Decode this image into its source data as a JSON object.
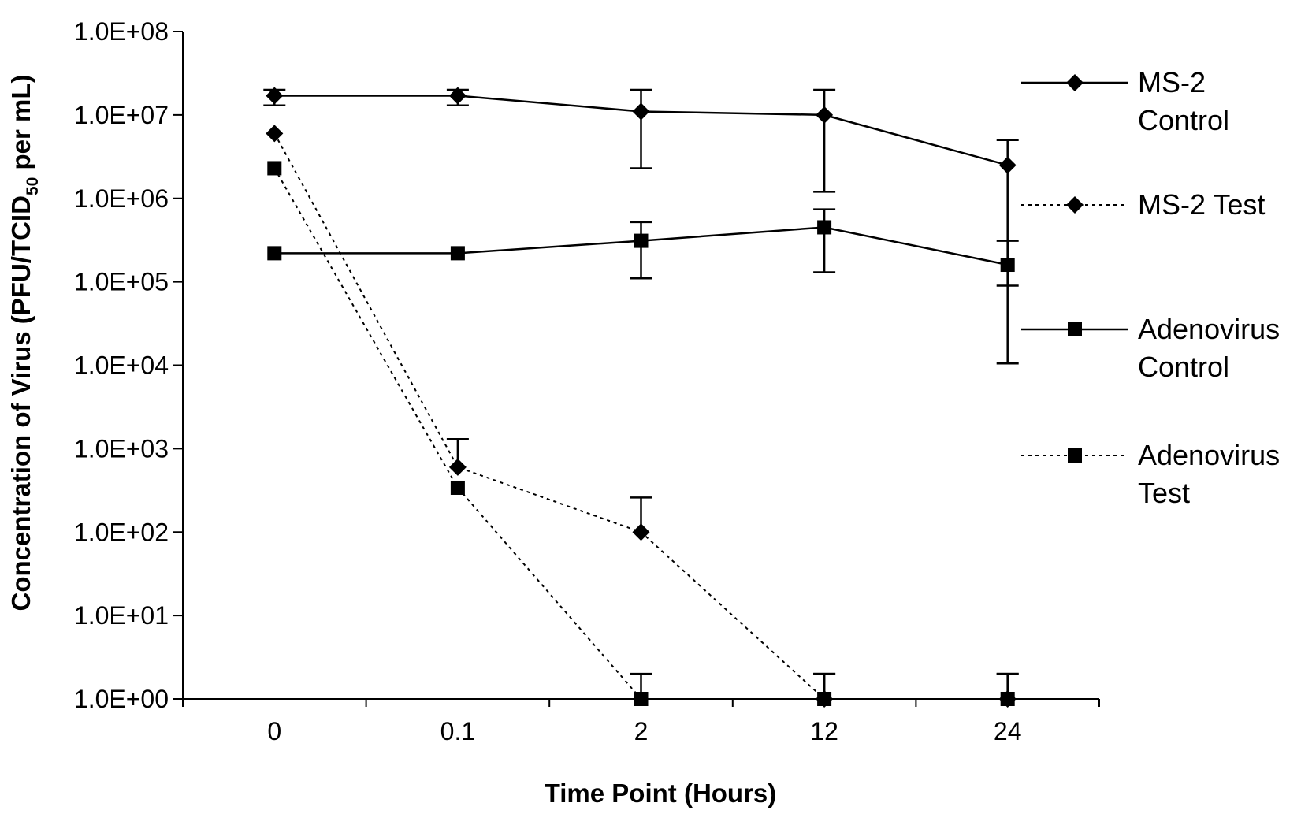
{
  "chart_data": {
    "type": "line",
    "title": "",
    "xlabel": "Time Point (Hours)",
    "ylabel": "Concentration of Virus (PFU/TCID",
    "ylabel_subscript": "50",
    "ylabel_suffix": " per mL)",
    "yscale": "log",
    "ylim": [
      1,
      100000000
    ],
    "categories": [
      "0",
      "0.1",
      "2",
      "12",
      "24"
    ],
    "y_tick_labels": [
      "1.0E+00",
      "1.0E+01",
      "1.0E+02",
      "1.0E+03",
      "1.0E+04",
      "1.0E+05",
      "1.0E+06",
      "1.0E+07",
      "1.0E+08"
    ],
    "grid": false,
    "legend_position": "right",
    "series": [
      {
        "name": "MS-2 Control",
        "legend_lines": [
          "MS-2",
          "Control"
        ],
        "marker": "diamond",
        "line": "solid",
        "values": [
          17000000,
          17000000,
          11000000,
          10000000,
          2500000
        ],
        "error_upper": [
          20000000,
          20000000,
          20000000,
          20000000,
          5000000
        ],
        "error_lower": [
          13000000,
          13000000,
          2300000,
          1200000,
          90000
        ]
      },
      {
        "name": "MS-2 Test",
        "legend_lines": [
          "MS-2 Test"
        ],
        "marker": "diamond",
        "line": "dotted",
        "values": [
          6000000,
          600,
          100,
          1,
          1
        ],
        "error_upper": [
          null,
          1300,
          260,
          2,
          2
        ],
        "error_lower": [
          null,
          null,
          null,
          null,
          null
        ]
      },
      {
        "name": "Adenovirus Control",
        "legend_lines": [
          "Adenovirus",
          "Control"
        ],
        "marker": "square",
        "line": "solid",
        "values": [
          220000,
          220000,
          310000,
          450000,
          160000
        ],
        "error_upper": [
          null,
          null,
          520000,
          740000,
          310000
        ],
        "error_lower": [
          null,
          null,
          110000,
          130000,
          10500
        ]
      },
      {
        "name": "Adenovirus Test",
        "legend_lines": [
          "Adenovirus",
          "Test"
        ],
        "marker": "square",
        "line": "dotted",
        "values": [
          2300000,
          340,
          1,
          1,
          1
        ],
        "error_upper": [
          null,
          null,
          2,
          2,
          2
        ],
        "error_lower": [
          null,
          null,
          null,
          null,
          null
        ]
      }
    ]
  }
}
